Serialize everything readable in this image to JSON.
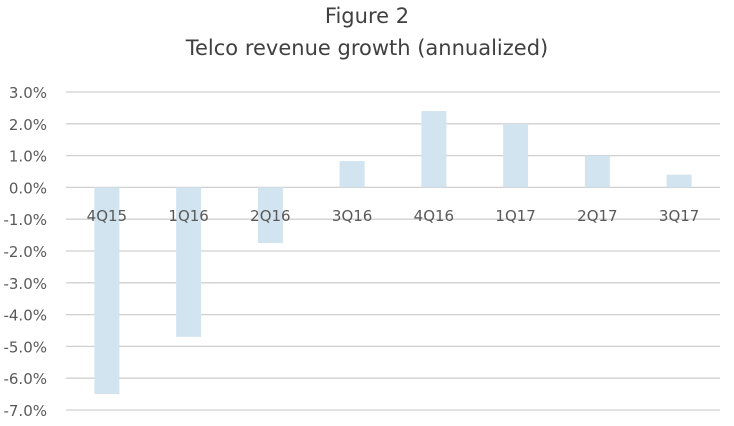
{
  "chart_data": {
    "type": "bar",
    "title": "Figure 2",
    "subtitle": "Telco revenue growth (annualized)",
    "xlabel": "",
    "ylabel": "",
    "categories": [
      "4Q15",
      "1Q16",
      "2Q16",
      "3Q16",
      "4Q16",
      "1Q17",
      "2Q17",
      "3Q17"
    ],
    "values": [
      -6.5,
      -4.7,
      -1.75,
      0.83,
      2.4,
      2.0,
      1.0,
      0.4
    ],
    "unit": "%",
    "ylim": [
      -7,
      3
    ],
    "yticks": [
      "3.0%",
      "2.0%",
      "1.0%",
      "0.0%",
      "-1.0%",
      "-2.0%",
      "-3.0%",
      "-4.0%",
      "-5.0%",
      "-6.0%",
      "-7.0%"
    ],
    "grid": true,
    "legend": "none",
    "bar_color": "#d2e4f0"
  }
}
